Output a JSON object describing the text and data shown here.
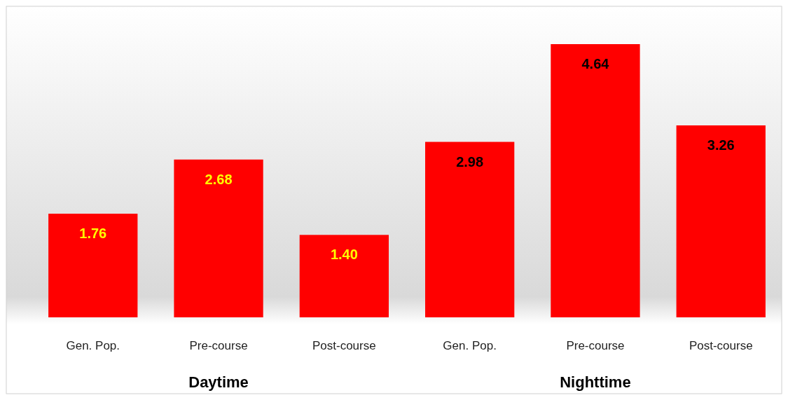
{
  "chart_data": {
    "type": "bar",
    "categories": [
      "Gen.  Pop.",
      "Pre-course",
      "Post-course",
      "Gen.  Pop.",
      "Pre-course",
      "Post-course"
    ],
    "values": [
      1.76,
      2.68,
      1.4,
      2.98,
      4.64,
      3.26
    ],
    "value_labels": [
      "1.76",
      "2.68",
      "1.40",
      "2.98",
      "4.64",
      "3.26"
    ],
    "color": "#ff0000",
    "annotations": [
      "Daytime",
      "Nighttime"
    ]
  }
}
